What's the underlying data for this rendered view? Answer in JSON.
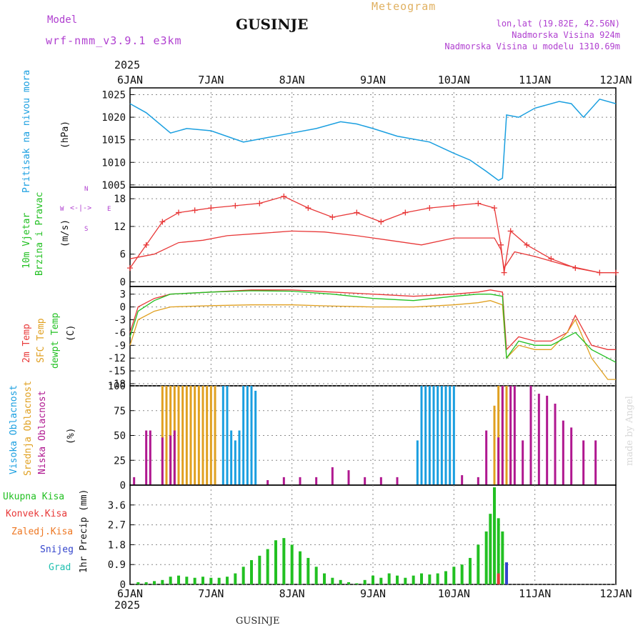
{
  "header": {
    "model_label": "Model",
    "model_name": "wrf-nmm_v3.9.1 e3km",
    "station": "GUSINJE",
    "meteogram": "Meteogram",
    "lonlat": "lon,lat (19.82E, 42.56N)",
    "altitude": "Nadmorska Visina 924m",
    "model_altitude": "Nadmorska Visina u modelu 1310.69m",
    "footer_station": "GUSINJE",
    "credit": "made by Angel",
    "year": "2025"
  },
  "colors": {
    "pressure": "#1a9fe0",
    "temp2m": "#e83838",
    "sfc": "#e0a020",
    "dewpt": "#22c022",
    "high_cloud": "#1a9fe0",
    "mid_cloud": "#e0a020",
    "low_cloud": "#b01890",
    "total_precip": "#22c022",
    "conv_precip": "#e83838",
    "freezing": "#ee7722",
    "snow": "#3344cc",
    "hail": "#22c0b0",
    "wind_speed": "#000000",
    "gusts": "#e83838",
    "label_purple": "#b040d0",
    "label_gold": "#e0b060"
  },
  "chart_data": [
    {
      "type": "line",
      "id": "pressure",
      "ylabel": "Pritisak na nivou mora",
      "unit": "(hPa)",
      "x_labels": [
        "6JAN",
        "7JAN",
        "8JAN",
        "9JAN",
        "10JAN",
        "11JAN",
        "12JAN"
      ],
      "ylim": [
        1004.5,
        1026.5
      ],
      "yticks": [
        1005,
        1010,
        1015,
        1020,
        1025
      ],
      "series": [
        {
          "key": "pressure",
          "x": [
            0,
            0.2,
            0.5,
            0.7,
            1,
            1.4,
            1.7,
            2,
            2.3,
            2.6,
            2.8,
            3,
            3.3,
            3.7,
            4,
            4.2,
            4.4,
            4.55,
            4.6,
            4.65,
            4.8,
            5,
            5.3,
            5.45,
            5.6,
            5.8,
            6
          ],
          "y": [
            1023,
            1021,
            1016.5,
            1017.5,
            1017,
            1014.5,
            1015.5,
            1016.5,
            1017.5,
            1019,
            1018.5,
            1017.5,
            1015.8,
            1014.5,
            1012,
            1010.5,
            1008,
            1006,
            1006.5,
            1020.5,
            1020,
            1022,
            1023.5,
            1023,
            1020,
            1024,
            1023
          ]
        }
      ]
    },
    {
      "type": "line",
      "id": "wind",
      "ylabel": "10m Vjetar",
      "ylabel2": "Brzina i Pravac",
      "unit": "(m/s)",
      "compass": {
        "n": "N",
        "s": "S",
        "w": "W",
        "e": "E"
      },
      "ylim": [
        -1,
        20.5
      ],
      "yticks": [
        0,
        6,
        12,
        18
      ],
      "series": [
        {
          "key": "speed",
          "name": "speed",
          "x": [
            0,
            0.3,
            0.6,
            0.9,
            1.2,
            1.6,
            2,
            2.4,
            2.8,
            3.2,
            3.6,
            4,
            4.3,
            4.5,
            4.58,
            4.62,
            4.75,
            5,
            5.4,
            5.8,
            6
          ],
          "y": [
            5,
            6,
            8.5,
            9,
            10,
            10.5,
            11,
            10.8,
            10,
            9,
            8,
            9.5,
            9.5,
            9.5,
            7,
            3,
            6.5,
            5.5,
            3.5,
            2,
            2
          ]
        },
        {
          "key": "gusts",
          "name": "gusts",
          "x": [
            0,
            0.2,
            0.4,
            0.6,
            0.8,
            1,
            1.3,
            1.6,
            1.9,
            2.2,
            2.5,
            2.8,
            3.1,
            3.4,
            3.7,
            4,
            4.3,
            4.5,
            4.58,
            4.62,
            4.7,
            4.9,
            5.2,
            5.5,
            5.8,
            6
          ],
          "y": [
            3,
            8,
            13,
            15,
            15.5,
            16,
            16.5,
            17,
            18.5,
            16,
            14,
            15,
            13,
            15,
            16,
            16.5,
            17,
            16,
            8,
            2,
            11,
            8,
            5,
            3,
            2,
            2
          ]
        }
      ]
    },
    {
      "type": "line",
      "id": "temperature",
      "ylabels": [
        "2m Temp",
        "SFC Temp",
        "dewpt Temp"
      ],
      "unit": "(C)",
      "ylim": [
        -18.5,
        4.8
      ],
      "yticks": [
        3,
        0,
        -3,
        -6,
        -9,
        -12,
        -15,
        -18
      ],
      "series": [
        {
          "key": "temp2m",
          "name": "2m Temp",
          "x": [
            0,
            0.1,
            0.3,
            0.5,
            1,
            1.5,
            2,
            2.5,
            3,
            3.5,
            4,
            4.3,
            4.45,
            4.6,
            4.65,
            4.8,
            5,
            5.2,
            5.4,
            5.5,
            5.7,
            5.9,
            6
          ],
          "y": [
            -6,
            0,
            2,
            3,
            3.5,
            4,
            4,
            3.5,
            3,
            2.5,
            3,
            3.5,
            4,
            3.5,
            -10,
            -7,
            -8,
            -8,
            -6,
            -2,
            -9,
            -10,
            -10
          ]
        },
        {
          "key": "sfc",
          "name": "SFC Temp",
          "x": [
            0,
            0.1,
            0.3,
            0.5,
            1,
            1.5,
            2,
            2.5,
            3,
            3.5,
            4,
            4.3,
            4.45,
            4.6,
            4.65,
            4.8,
            5,
            5.2,
            5.4,
            5.5,
            5.7,
            5.9,
            6
          ],
          "y": [
            -9,
            -3,
            -1,
            0,
            0.3,
            0.5,
            0.5,
            0.2,
            0,
            0,
            0.5,
            1,
            1.5,
            0.5,
            -12,
            -9,
            -10,
            -10,
            -6,
            -3,
            -12,
            -17,
            -17
          ]
        },
        {
          "key": "dewpt",
          "name": "dewpt Temp",
          "x": [
            0,
            0.1,
            0.3,
            0.5,
            1,
            1.5,
            2,
            2.5,
            3,
            3.5,
            4,
            4.3,
            4.45,
            4.6,
            4.65,
            4.8,
            5,
            5.2,
            5.4,
            5.5,
            5.7,
            5.9,
            6
          ],
          "y": [
            -7,
            -1,
            1.5,
            3,
            3.5,
            3.8,
            3.7,
            3,
            2,
            1.5,
            2.5,
            3,
            3,
            2.5,
            -12,
            -8,
            -9,
            -9,
            -7,
            -6,
            -10,
            -12,
            -13
          ]
        }
      ]
    },
    {
      "type": "bar",
      "id": "clouds",
      "ylabels": [
        "Visoka Oblacnost",
        "Srednja Oblacnost",
        "Niska Oblacnost"
      ],
      "unit": "(%)",
      "ylim": [
        0,
        100
      ],
      "yticks": [
        0,
        25,
        50,
        75,
        100
      ],
      "series": [
        {
          "key": "high_cloud",
          "name": "Visoka Oblacnost",
          "x": [
            1.15,
            1.2,
            1.25,
            1.3,
            1.35,
            1.4,
            1.45,
            1.5,
            1.55,
            3.55,
            3.6,
            3.65,
            3.7,
            3.75,
            3.8,
            3.85,
            3.9,
            3.95,
            4.0
          ],
          "y": [
            100,
            100,
            55,
            45,
            55,
            100,
            100,
            100,
            95,
            45,
            100,
            100,
            100,
            100,
            100,
            100,
            100,
            100,
            100
          ]
        },
        {
          "key": "mid_cloud",
          "name": "Srednja Oblacnost",
          "x": [
            0.4,
            0.45,
            0.5,
            0.55,
            0.6,
            0.65,
            0.7,
            0.75,
            0.8,
            0.85,
            0.9,
            0.95,
            1.0,
            1.05,
            4.5,
            4.55,
            4.6,
            4.65,
            4.7
          ],
          "y": [
            100,
            100,
            100,
            100,
            100,
            100,
            100,
            100,
            100,
            100,
            100,
            100,
            100,
            100,
            80,
            100,
            100,
            100,
            25
          ]
        },
        {
          "key": "low_cloud",
          "name": "Niska Oblacnost",
          "x": [
            0.05,
            0.2,
            0.25,
            0.4,
            0.5,
            0.55,
            1.7,
            1.9,
            2.1,
            2.3,
            2.5,
            2.7,
            2.9,
            3.1,
            3.3,
            4.1,
            4.3,
            4.4,
            4.55,
            4.6,
            4.7,
            4.75,
            4.85,
            4.95,
            5.05,
            5.15,
            5.25,
            5.35,
            5.45,
            5.6,
            5.75
          ],
          "y": [
            8,
            55,
            55,
            48,
            50,
            55,
            5,
            8,
            8,
            8,
            18,
            15,
            8,
            8,
            8,
            10,
            8,
            55,
            48,
            100,
            100,
            100,
            45,
            100,
            92,
            90,
            82,
            65,
            58,
            45,
            45
          ]
        }
      ]
    },
    {
      "type": "bar",
      "id": "precip",
      "ylabels": [
        "Ukupna Kisa",
        "Konvek.Kisa",
        "Zaledj.Kisa",
        "Snijeg",
        "Grad"
      ],
      "unit": "1hr Precip (mm)",
      "x_labels": [
        "6JAN",
        "7JAN",
        "8JAN",
        "9JAN",
        "10JAN",
        "11JAN",
        "12JAN"
      ],
      "ylim": [
        0,
        4.5
      ],
      "yticks": [
        0,
        0.9,
        1.8,
        2.7,
        3.6
      ],
      "series": [
        {
          "key": "total_precip",
          "name": "Ukupna Kisa",
          "x": [
            0.1,
            0.2,
            0.3,
            0.4,
            0.5,
            0.6,
            0.7,
            0.8,
            0.9,
            1.0,
            1.1,
            1.2,
            1.3,
            1.4,
            1.5,
            1.6,
            1.7,
            1.8,
            1.9,
            2.0,
            2.1,
            2.2,
            2.3,
            2.4,
            2.5,
            2.6,
            2.7,
            2.8,
            2.9,
            3.0,
            3.1,
            3.2,
            3.3,
            3.4,
            3.5,
            3.6,
            3.7,
            3.8,
            3.9,
            4.0,
            4.1,
            4.2,
            4.3,
            4.4,
            4.45,
            4.5,
            4.55,
            4.6
          ],
          "y": [
            0.1,
            0.1,
            0.15,
            0.2,
            0.35,
            0.4,
            0.35,
            0.3,
            0.35,
            0.3,
            0.3,
            0.35,
            0.5,
            0.8,
            1.1,
            1.3,
            1.6,
            2.0,
            2.1,
            1.8,
            1.5,
            1.2,
            0.8,
            0.5,
            0.3,
            0.2,
            0.1,
            0.05,
            0.2,
            0.4,
            0.3,
            0.5,
            0.4,
            0.3,
            0.4,
            0.5,
            0.45,
            0.5,
            0.6,
            0.8,
            0.9,
            1.2,
            1.8,
            2.4,
            3.2,
            4.4,
            3.0,
            2.4
          ]
        },
        {
          "key": "conv_precip",
          "name": "Konvek.Kisa",
          "x": [
            4.55
          ],
          "y": [
            0.5
          ]
        },
        {
          "key": "freezing",
          "name": "Zaledj.Kisa",
          "x": [],
          "y": []
        },
        {
          "key": "snow",
          "name": "Snijeg",
          "x": [
            4.65
          ],
          "y": [
            1.0
          ]
        },
        {
          "key": "hail",
          "name": "Grad",
          "x": [],
          "y": []
        }
      ]
    }
  ]
}
